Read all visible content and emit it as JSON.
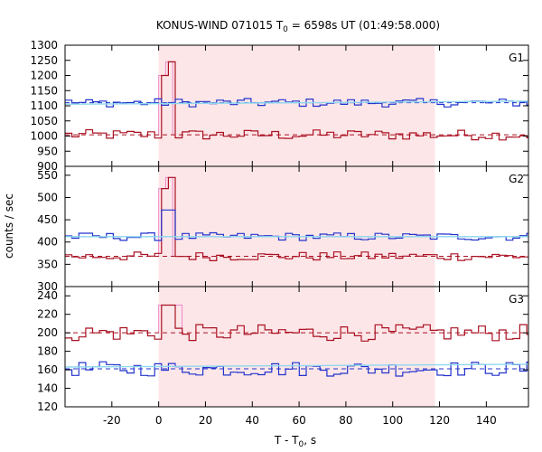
{
  "title": {
    "main": "KONUS-WIND 071015 T",
    "sub": "0",
    "rest": " = 6598s UT (01:49:58.000)"
  },
  "chart_data": {
    "type": "line",
    "xlabel_main": "T - T",
    "xlabel_sub": "0",
    "xlabel_rest": ", s",
    "ylabel": "counts / sec",
    "xlim": [
      -40,
      158
    ],
    "x_ticks": [
      -20,
      0,
      20,
      40,
      60,
      80,
      100,
      120,
      140
    ],
    "shaded_interval": [
      0,
      118
    ],
    "colors": {
      "blue": "#2233cc",
      "red": "#aa1122",
      "fit": "#8fd8f0",
      "pink": "#ee88cc",
      "shade": "#fde6e8"
    },
    "panels": [
      {
        "name": "G1",
        "ylim": [
          900,
          1300
        ],
        "yticks": [
          900,
          950,
          1000,
          1050,
          1100,
          1150,
          1200,
          1250,
          1300
        ],
        "blue_level": 1110,
        "red_level": 1004,
        "blue_fit": [
          1105,
          1115
        ],
        "peak_x": [
          0,
          6
        ],
        "peak_values": [
          1200,
          1245
        ],
        "blue_amp": 14,
        "red_amp": 17
      },
      {
        "name": "G2",
        "ylim": [
          300,
          570
        ],
        "yticks": [
          300,
          350,
          400,
          450,
          500,
          550
        ],
        "blue_level": 412,
        "red_level": 368,
        "blue_fit": [
          412,
          412
        ],
        "peak_x": [
          0,
          6
        ],
        "peak_values": [
          520,
          545
        ],
        "blue_amp": 9,
        "red_amp": 10
      },
      {
        "name": "G3",
        "ylim": [
          120,
          250
        ],
        "yticks": [
          120,
          140,
          160,
          180,
          200,
          220,
          240
        ],
        "blue_level": 161,
        "red_level": 200,
        "blue_fit": [
          163,
          166
        ],
        "peak_x": [
          0,
          10
        ],
        "peak_values": [
          230,
          230
        ],
        "blue_amp": 8,
        "red_amp": 9
      }
    ]
  }
}
